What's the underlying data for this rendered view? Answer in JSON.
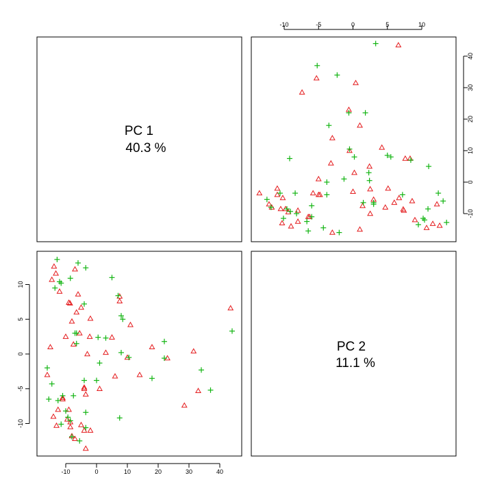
{
  "chart_data": {
    "type": "scatter",
    "variables": [
      {
        "label": "PC 1",
        "variance": "40.3 %",
        "range": [
          -17,
          44
        ]
      },
      {
        "label": "PC 2",
        "variance": "11.1 %",
        "range": [
          -14,
          14
        ]
      }
    ],
    "ticks": {
      "pc1": [
        -10,
        0,
        10,
        20,
        30,
        40
      ],
      "pc2": [
        -10,
        -5,
        0,
        5,
        10
      ]
    },
    "series": [
      {
        "marker": "triangle",
        "color": "#e41a1c",
        "points": [
          [
            -15,
            1.0
          ],
          [
            -16,
            -3.0
          ],
          [
            -14.5,
            10.7
          ],
          [
            -13.8,
            12.6
          ],
          [
            -13.2,
            11.6
          ],
          [
            -12,
            9.0
          ],
          [
            -14,
            -9.0
          ],
          [
            -13,
            -10.3
          ],
          [
            -12.5,
            -8.0
          ],
          [
            -11,
            -6.3
          ],
          [
            -11,
            -6.5
          ],
          [
            -10,
            2.5
          ],
          [
            -9.5,
            -9.4
          ],
          [
            -9,
            -8.0
          ],
          [
            -8.5,
            -10.5
          ],
          [
            -8.5,
            -9.8
          ],
          [
            -8,
            -11.8
          ],
          [
            -7,
            -12.2
          ],
          [
            -9,
            7.4
          ],
          [
            -8.6,
            7.3
          ],
          [
            -8,
            4.7
          ],
          [
            -7.5,
            1.4
          ],
          [
            -7,
            12.2
          ],
          [
            -6.5,
            6.0
          ],
          [
            -6,
            8.6
          ],
          [
            -5.5,
            3.0
          ],
          [
            -5,
            6.7
          ],
          [
            -5,
            -10.2
          ],
          [
            -4,
            -5.0
          ],
          [
            -4,
            -4.8
          ],
          [
            -4,
            -11.0
          ],
          [
            -3.5,
            -13.6
          ],
          [
            -3,
            0.0
          ],
          [
            -3.5,
            -5.8
          ],
          [
            -2,
            5.1
          ],
          [
            -2.2,
            2.5
          ],
          [
            -2,
            -11.0
          ],
          [
            1,
            -5.0
          ],
          [
            3,
            0.2
          ],
          [
            5,
            2.4
          ],
          [
            6,
            -3.2
          ],
          [
            7.5,
            8.3
          ],
          [
            7.5,
            7.6
          ],
          [
            10,
            -0.5
          ],
          [
            11,
            4.2
          ],
          [
            14,
            -3.0
          ],
          [
            18,
            1.0
          ],
          [
            23,
            -0.6
          ],
          [
            28.5,
            -7.4
          ],
          [
            31.5,
            0.4
          ],
          [
            33,
            -5.3
          ],
          [
            43.5,
            6.6
          ]
        ]
      },
      {
        "marker": "plus",
        "color": "#11b411",
        "points": [
          [
            -16,
            -2.0
          ],
          [
            -15.5,
            -6.5
          ],
          [
            -14.5,
            -4.3
          ],
          [
            -13.5,
            9.5
          ],
          [
            -12.8,
            13.6
          ],
          [
            -12,
            10.4
          ],
          [
            -11.5,
            10.2
          ],
          [
            -12.5,
            -6.7
          ],
          [
            -11.5,
            -10.1
          ],
          [
            -11,
            -6.0
          ],
          [
            -10,
            -8.2
          ],
          [
            -9.3,
            -9.1
          ],
          [
            -8.5,
            -9.6
          ],
          [
            -8.5,
            10.9
          ],
          [
            -8,
            -11.9
          ],
          [
            -7.5,
            -6.0
          ],
          [
            -7,
            3.0
          ],
          [
            -6.5,
            3.0
          ],
          [
            -6.5,
            1.5
          ],
          [
            -6,
            13.1
          ],
          [
            -5.5,
            -12.5
          ],
          [
            -4,
            7.2
          ],
          [
            -4,
            -3.8
          ],
          [
            -3.5,
            -8.4
          ],
          [
            -3.5,
            -10.6
          ],
          [
            -3.5,
            12.4
          ],
          [
            0,
            -3.8
          ],
          [
            0.5,
            2.4
          ],
          [
            1,
            -1.3
          ],
          [
            3,
            2.3
          ],
          [
            5,
            11.0
          ],
          [
            7,
            8.4
          ],
          [
            7.5,
            -9.2
          ],
          [
            8,
            5.5
          ],
          [
            8,
            0.2
          ],
          [
            8.5,
            5.0
          ],
          [
            10.5,
            -0.5
          ],
          [
            18,
            -3.5
          ],
          [
            22,
            1.8
          ],
          [
            22,
            -0.6
          ],
          [
            34,
            -2.3
          ],
          [
            37,
            -5.2
          ],
          [
            44,
            3.3
          ]
        ]
      }
    ]
  }
}
